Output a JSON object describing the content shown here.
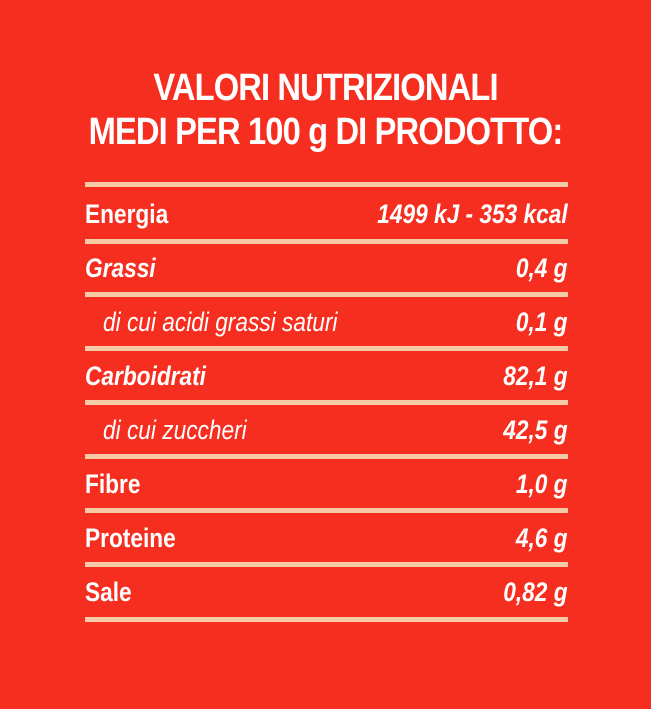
{
  "header": {
    "line1": "VALORI NUTRIZIONALI",
    "line2": "MEDI PER 100 g DI PRODOTTO:"
  },
  "rows": [
    {
      "name": "Energia",
      "value": "1499 kJ - 353 kcal"
    },
    {
      "name": "Grassi",
      "value": "0,4 g"
    },
    {
      "name": "di cui acidi grassi saturi",
      "value": "0,1 g"
    },
    {
      "name": "Carboidrati",
      "value": "82,1 g"
    },
    {
      "name": "di cui zuccheri",
      "value": "42,5 g"
    },
    {
      "name": "Fibre",
      "value": "1,0 g"
    },
    {
      "name": "Proteine",
      "value": "4,6 g"
    },
    {
      "name": "Sale",
      "value": "0,82 g"
    }
  ],
  "colors": {
    "background": "#f52e1f",
    "text": "#ffffff",
    "rule": "#f6c9a7"
  }
}
